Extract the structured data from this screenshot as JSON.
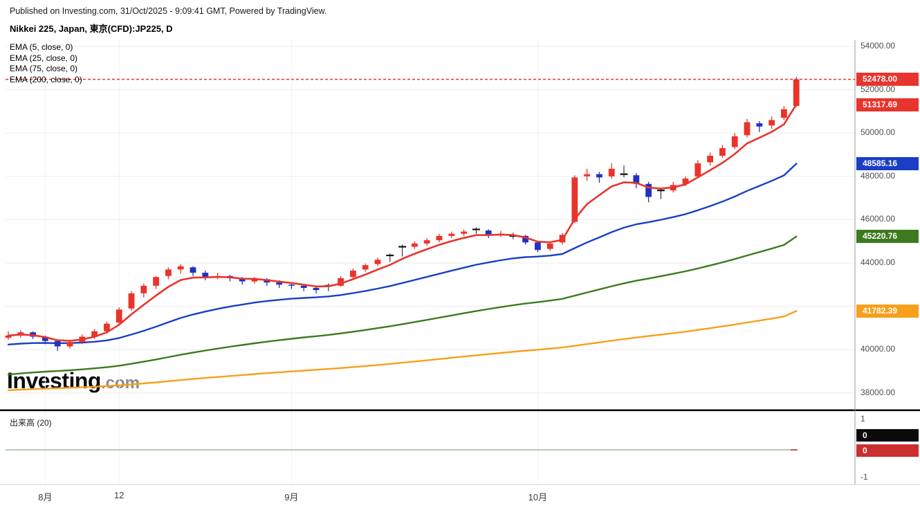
{
  "header": {
    "published_line": "Published on Investing.com, 31/Oct/2025 - 9:09:41 GMT, Powered by TradingView.",
    "instrument_line": "Nikkei 225, Japan, 東京(CFD):JP225, D"
  },
  "legend": {
    "items": [
      "EMA (5, close, 0)",
      "EMA (25, close, 0)",
      "EMA (75, close, 0)",
      "EMA (200, close, 0)"
    ]
  },
  "watermark": {
    "brand": "Investing",
    "suffix": ".com"
  },
  "volume": {
    "label": "出来高 (20)",
    "ticks": [
      {
        "label": "1"
      },
      {
        "label": "-1"
      }
    ],
    "badges": [
      {
        "text": "0",
        "bg": "#0a0a0a"
      },
      {
        "text": "0",
        "bg": "#cc2f2f"
      }
    ],
    "line_value": 0
  },
  "chart_data": {
    "type": "candlestick",
    "title": "Nikkei 225, Japan, 東京(CFD):JP225, D",
    "interval": "D",
    "ylim": [
      37250,
      54290
    ],
    "grid": true,
    "colors": {
      "up_candle": "#e8342c",
      "down_candle": "#2032c0",
      "doji": "#111111",
      "current_price_line": "#e8342c",
      "volume_line": "#9db79d"
    },
    "y_grid": [
      54000,
      52000,
      50000,
      48000,
      46000,
      44000,
      42000,
      40000,
      38000
    ],
    "y_ticks": [
      {
        "label": "54000.00",
        "value": 54000
      },
      {
        "label": "52000.00",
        "value": 52000
      },
      {
        "label": "50000.00",
        "value": 50000
      },
      {
        "label": "48000.00",
        "value": 48000
      },
      {
        "label": "46000.00",
        "value": 46000
      },
      {
        "label": "44000.00",
        "value": 44000
      },
      {
        "label": "40000.00",
        "value": 40000
      },
      {
        "label": "38000.00",
        "value": 38000
      }
    ],
    "x_ticks": [
      {
        "label": "8月",
        "index": 3
      },
      {
        "label": "12",
        "index": 9
      },
      {
        "label": "9月",
        "index": 23
      },
      {
        "label": "10月",
        "index": 43
      }
    ],
    "current_price": {
      "label": "52478.00",
      "value": 52478.0
    },
    "price_badges": [
      {
        "label": "52478.00",
        "value": 52478.0,
        "color": "#e8342c"
      },
      {
        "label": "51317.69",
        "value": 51317.69,
        "color": "#e8342c"
      },
      {
        "label": "48585.16",
        "value": 48585.16,
        "color": "#1a3fc4"
      },
      {
        "label": "45220.76",
        "value": 45220.76,
        "color": "#3d7a1f"
      },
      {
        "label": "41782.39",
        "value": 41782.39,
        "color": "#f6a01b"
      }
    ],
    "candles": [
      [
        40550,
        40850,
        40450,
        40650
      ],
      [
        40650,
        40900,
        40550,
        40800
      ],
      [
        40800,
        40850,
        40500,
        40600
      ],
      [
        40600,
        40650,
        40250,
        40400
      ],
      [
        40400,
        40450,
        39950,
        40150
      ],
      [
        40150,
        40450,
        40050,
        40350
      ],
      [
        40350,
        40700,
        40250,
        40600
      ],
      [
        40600,
        40950,
        40500,
        40850
      ],
      [
        40850,
        41300,
        40750,
        41200
      ],
      [
        41250,
        41950,
        41150,
        41850
      ],
      [
        41900,
        42700,
        41800,
        42600
      ],
      [
        42600,
        43050,
        42400,
        42950
      ],
      [
        42950,
        43400,
        42800,
        43350
      ],
      [
        43400,
        43800,
        43250,
        43700
      ],
      [
        43700,
        43950,
        43500,
        43850
      ],
      [
        43800,
        43850,
        43400,
        43550
      ],
      [
        43550,
        43650,
        43200,
        43350
      ],
      [
        43350,
        43550,
        43250,
        43400
      ],
      [
        43400,
        43450,
        43150,
        43300
      ],
      [
        43300,
        43350,
        43000,
        43150
      ],
      [
        43150,
        43350,
        43050,
        43250
      ],
      [
        43250,
        43300,
        42950,
        43100
      ],
      [
        43100,
        43200,
        42850,
        43000
      ],
      [
        43000,
        43100,
        42800,
        42950
      ],
      [
        42950,
        43000,
        42700,
        42850
      ],
      [
        42850,
        42900,
        42600,
        42750
      ],
      [
        42950,
        43050,
        42700,
        42950
      ],
      [
        42950,
        43400,
        42900,
        43300
      ],
      [
        43350,
        43750,
        43250,
        43650
      ],
      [
        43700,
        43980,
        43600,
        43900
      ],
      [
        43950,
        44250,
        43850,
        44150
      ],
      [
        44350,
        44450,
        44050,
        44350
      ],
      [
        44750,
        44850,
        44300,
        44750
      ],
      [
        44750,
        45000,
        44650,
        44900
      ],
      [
        44900,
        45150,
        44800,
        45050
      ],
      [
        45050,
        45350,
        44950,
        45250
      ],
      [
        45250,
        45450,
        45150,
        45350
      ],
      [
        45350,
        45550,
        45250,
        45450
      ],
      [
        45550,
        45650,
        45350,
        45550
      ],
      [
        45500,
        45550,
        45150,
        45300
      ],
      [
        45300,
        45480,
        45200,
        45350
      ],
      [
        45250,
        45400,
        45100,
        45250
      ],
      [
        45250,
        45300,
        44850,
        44950
      ],
      [
        44950,
        45000,
        44500,
        44600
      ],
      [
        44650,
        44980,
        44550,
        44900
      ],
      [
        44950,
        45380,
        44850,
        45300
      ],
      [
        45900,
        48050,
        45850,
        47950
      ],
      [
        48000,
        48350,
        47800,
        48100
      ],
      [
        48100,
        48200,
        47700,
        47950
      ],
      [
        48000,
        48600,
        47900,
        48350
      ],
      [
        48100,
        48500,
        47950,
        48100
      ],
      [
        48050,
        48150,
        47450,
        47650
      ],
      [
        47650,
        47750,
        46800,
        47050
      ],
      [
        47350,
        47450,
        46950,
        47350
      ],
      [
        47350,
        47750,
        47250,
        47600
      ],
      [
        47650,
        48000,
        47550,
        47900
      ],
      [
        48000,
        48750,
        47950,
        48600
      ],
      [
        48650,
        49100,
        48500,
        48950
      ],
      [
        48950,
        49450,
        48850,
        49300
      ],
      [
        49350,
        50000,
        49250,
        49850
      ],
      [
        49900,
        50650,
        49800,
        50500
      ],
      [
        50450,
        50550,
        50050,
        50300
      ],
      [
        50350,
        50750,
        50200,
        50600
      ],
      [
        50700,
        51250,
        50600,
        51100
      ],
      [
        51250,
        52600,
        51200,
        52478
      ]
    ],
    "ema_series": [
      {
        "name": "EMA (5, close, 0)",
        "color": "#e8342c",
        "last": 51317.69,
        "values": [
          40650,
          40700,
          40667,
          40578,
          40435,
          40407,
          40471,
          40597,
          40798,
          41149,
          41632,
          42071,
          42497,
          42898,
          43215,
          43327,
          43335,
          43357,
          43338,
          43275,
          43267,
          43211,
          43141,
          43077,
          43001,
          42917,
          42928,
          43052,
          43251,
          43467,
          43695,
          43913,
          44192,
          44428,
          44635,
          44840,
          45010,
          45157,
          45288,
          45292,
          45311,
          45291,
          45177,
          44985,
          44957,
          45071,
          46030,
          46720,
          47130,
          47536,
          47724,
          47699,
          47483,
          47439,
          47492,
          47628,
          47952,
          48284,
          48623,
          49031,
          49521,
          49780,
          50053,
          50402,
          51318
        ]
      },
      {
        "name": "EMA (25, close, 0)",
        "color": "#1a3fc4",
        "last": 48585.16,
        "values": [
          40235,
          40278,
          40303,
          40310,
          40298,
          40302,
          40325,
          40365,
          40429,
          40538,
          40697,
          40870,
          41061,
          41264,
          41463,
          41624,
          41757,
          41883,
          41992,
          42081,
          42171,
          42242,
          42300,
          42350,
          42388,
          42416,
          42457,
          42522,
          42609,
          42708,
          42819,
          42937,
          43076,
          43216,
          43357,
          43503,
          43645,
          43784,
          43920,
          44026,
          44128,
          44214,
          44271,
          44296,
          44342,
          44416,
          44688,
          44950,
          45181,
          45425,
          45631,
          45786,
          45883,
          45996,
          46119,
          46256,
          46436,
          46629,
          46834,
          47066,
          47330,
          47558,
          47792,
          48046,
          48585
        ]
      },
      {
        "name": "EMA (75, close, 0)",
        "color": "#3d7a1f",
        "last": 45220.76,
        "values": [
          38849,
          38900,
          38945,
          38983,
          39014,
          39049,
          39090,
          39136,
          39190,
          39260,
          39348,
          39443,
          39546,
          39655,
          39765,
          39865,
          39957,
          40048,
          40134,
          40213,
          40293,
          40367,
          40436,
          40502,
          40564,
          40621,
          40682,
          40751,
          40827,
          40908,
          40993,
          41081,
          41177,
          41275,
          41374,
          41476,
          41578,
          41680,
          41782,
          41875,
          41966,
          42052,
          42128,
          42193,
          42264,
          42344,
          42491,
          42639,
          42779,
          42925,
          43061,
          43182,
          43284,
          43391,
          43502,
          43618,
          43749,
          43886,
          44028,
          44181,
          44347,
          44504,
          44664,
          44833,
          45221
        ]
      },
      {
        "name": "EMA (200, close, 0)",
        "color": "#f6a01b",
        "last": 41782.39,
        "values": [
          38125,
          38152,
          38176,
          38198,
          38218,
          38239,
          38263,
          38289,
          38318,
          38353,
          38396,
          38441,
          38490,
          38542,
          38595,
          38645,
          38692,
          38739,
          38784,
          38828,
          38872,
          38914,
          38955,
          38995,
          39033,
          39070,
          39109,
          39151,
          39196,
          39243,
          39292,
          39342,
          39396,
          39451,
          39507,
          39564,
          39622,
          39680,
          39738,
          39793,
          39848,
          39902,
          39952,
          39998,
          40047,
          40099,
          40177,
          40256,
          40333,
          40413,
          40489,
          40560,
          40625,
          40692,
          40761,
          40832,
          40909,
          40989,
          41072,
          41159,
          41252,
          41342,
          41434,
          41530,
          41782
        ]
      }
    ]
  }
}
